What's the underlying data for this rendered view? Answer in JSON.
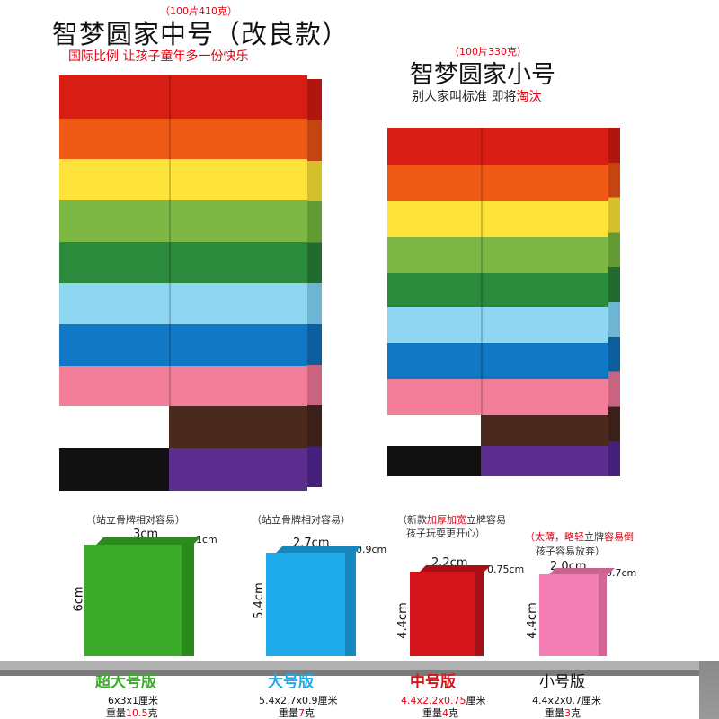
{
  "medium": {
    "spec": "（100片410克）",
    "title": "智梦圆家中号（改良款）",
    "subtitle": "国际比例 让孩子童年多一份快乐"
  },
  "small": {
    "spec": "（100片330克）",
    "title": "智梦圆家小号",
    "subtitle_a": "别人家叫标准 即将",
    "subtitle_b": "淘汰"
  },
  "colors": {
    "red": "#d81e14",
    "orange": "#ef5a17",
    "yellow": "#fde33a",
    "lightgreen": "#7db844",
    "darkgreen": "#2c8a3c",
    "skyblue": "#8ed6f2",
    "blue": "#1178c6",
    "pink": "#f27e9a",
    "white": "#ffffff",
    "brown": "#4a2a1f",
    "black": "#111111",
    "purple": "#5a2d8e",
    "accent": "#e60012"
  },
  "compare": {
    "xl": {
      "note": "（站立骨牌相对容易）",
      "width": "3cm",
      "thickness": "1cm",
      "height": "6cm",
      "name": "超大号版",
      "dims": "6x3x1厘米",
      "weight_prefix": "重量",
      "weight_value": "10.5",
      "weight_unit": "克",
      "color": "#3bab2a"
    },
    "l": {
      "note": "（站立骨牌相对容易）",
      "width": "2.7cm",
      "thickness": "0.9cm",
      "height": "5.4cm",
      "name": "大号版",
      "dims": "5.4x2.7x0.9厘米",
      "weight_prefix": "重量",
      "weight_value": "7",
      "weight_unit": "克",
      "color": "#1ea9e8"
    },
    "m": {
      "note_a": "（新款",
      "note_b": "加厚加宽",
      "note_c": "立牌容易",
      "note2": "孩子玩耍更开心）",
      "width": "2.2cm",
      "thickness": "0.75cm",
      "height": "4.4cm",
      "name": "中号版",
      "dims_a": "4.4x2.2x0.75",
      "dims_b": "厘米",
      "weight_prefix": "重量",
      "weight_value": "4",
      "weight_unit": "克",
      "color": "#d4151b"
    },
    "s": {
      "note_a": "（太薄，",
      "note_b": "略轻",
      "note_c": "立牌",
      "note_d": "容易倒",
      "note2": "孩子容易放弃）",
      "width": "2.0cm",
      "thickness": "0.7cm",
      "height": "4.4cm",
      "name": "小号版",
      "dims": "4.4x2x0.7厘米",
      "weight_prefix": "重量",
      "weight_value": "3",
      "weight_unit": "克",
      "color": "#f27eb4"
    }
  }
}
